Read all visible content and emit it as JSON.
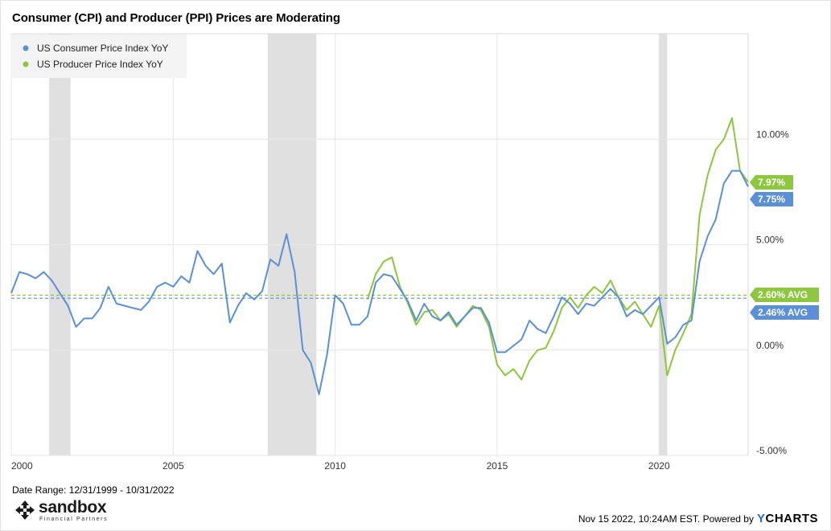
{
  "title": "Consumer (CPI) and Producer (PPI) Prices are Moderating",
  "date_range": "Date Range: 12/31/1999 - 10/31/2022",
  "footer": {
    "timestamp": "Nov 15 2022, 10:24AM EST. Powered by",
    "brand_y": "Y",
    "brand_rest": "CHARTS"
  },
  "logo": {
    "name": "sandbox",
    "sub": "Financial Partners",
    "icon": "arrows-cross-icon"
  },
  "colors": {
    "cpi": "#5b8fd6",
    "ppi": "#8dc63f",
    "recession": "#e0e0e0",
    "grid": "#e6e6e6"
  },
  "chart_data": {
    "type": "line",
    "title": "Consumer (CPI) and Producer (PPI) Prices are Moderating",
    "ylim": [
      -5,
      15
    ],
    "xlim": [
      2000.0,
      2022.75
    ],
    "x_ticks": [
      "2000",
      "2005",
      "2010",
      "2015",
      "2020"
    ],
    "y_ticks": [
      "10.00%",
      "5.00%",
      "0.00%",
      "-5.00%"
    ],
    "y_tick_values": [
      10,
      5,
      0,
      -5
    ],
    "grid": true,
    "legend_position": "top-left",
    "recessions": [
      [
        2001.17,
        2001.83
      ],
      [
        2007.92,
        2009.42
      ],
      [
        2020.0,
        2020.25
      ]
    ],
    "series": [
      {
        "name": "US Consumer Price Index YoY",
        "color": "#5b8fd6",
        "last_label": "7.75%",
        "last_value": 7.75,
        "avg_label": "2.46% AVG",
        "avg": 2.46,
        "x": [
          2000.0,
          2000.25,
          2000.5,
          2000.75,
          2001.0,
          2001.25,
          2001.5,
          2001.75,
          2002.0,
          2002.25,
          2002.5,
          2002.75,
          2003.0,
          2003.25,
          2003.5,
          2003.75,
          2004.0,
          2004.25,
          2004.5,
          2004.75,
          2005.0,
          2005.25,
          2005.5,
          2005.75,
          2006.0,
          2006.25,
          2006.5,
          2006.75,
          2007.0,
          2007.25,
          2007.5,
          2007.75,
          2008.0,
          2008.25,
          2008.5,
          2008.75,
          2009.0,
          2009.25,
          2009.5,
          2009.75,
          2010.0,
          2010.25,
          2010.5,
          2010.75,
          2011.0,
          2011.25,
          2011.5,
          2011.75,
          2012.0,
          2012.25,
          2012.5,
          2012.75,
          2013.0,
          2013.25,
          2013.5,
          2013.75,
          2014.0,
          2014.25,
          2014.5,
          2014.75,
          2015.0,
          2015.25,
          2015.5,
          2015.75,
          2016.0,
          2016.25,
          2016.5,
          2016.75,
          2017.0,
          2017.25,
          2017.5,
          2017.75,
          2018.0,
          2018.25,
          2018.5,
          2018.75,
          2019.0,
          2019.25,
          2019.5,
          2019.75,
          2020.0,
          2020.25,
          2020.5,
          2020.75,
          2021.0,
          2021.25,
          2021.5,
          2021.75,
          2022.0,
          2022.25,
          2022.5,
          2022.75
        ],
        "values": [
          2.7,
          3.7,
          3.6,
          3.4,
          3.7,
          3.3,
          2.7,
          2.1,
          1.1,
          1.5,
          1.5,
          2.0,
          3.0,
          2.2,
          2.1,
          2.0,
          1.9,
          2.3,
          3.0,
          3.2,
          3.0,
          3.5,
          3.2,
          4.7,
          4.0,
          3.6,
          4.1,
          1.3,
          2.1,
          2.7,
          2.4,
          2.8,
          4.3,
          4.0,
          5.5,
          3.7,
          0.0,
          -0.6,
          -2.1,
          -0.2,
          2.6,
          2.2,
          1.2,
          1.2,
          1.6,
          3.2,
          3.6,
          3.5,
          2.9,
          2.3,
          1.4,
          2.2,
          1.6,
          1.4,
          1.8,
          1.2,
          1.6,
          2.0,
          2.0,
          1.3,
          -0.1,
          -0.1,
          0.2,
          0.5,
          1.4,
          1.0,
          0.8,
          1.6,
          2.5,
          2.2,
          1.7,
          2.2,
          2.1,
          2.5,
          2.9,
          2.5,
          1.6,
          1.9,
          1.7,
          2.1,
          2.5,
          0.3,
          0.6,
          1.2,
          1.4,
          4.2,
          5.4,
          6.2,
          7.9,
          8.5,
          8.5,
          7.75
        ]
      },
      {
        "name": "US Producer Price Index YoY",
        "color": "#8dc63f",
        "last_label": "7.97%",
        "last_value": 7.97,
        "avg_label": "2.60% AVG",
        "avg": 2.6,
        "x": [
          2011.0,
          2011.25,
          2011.5,
          2011.75,
          2012.0,
          2012.25,
          2012.5,
          2012.75,
          2013.0,
          2013.25,
          2013.5,
          2013.75,
          2014.0,
          2014.25,
          2014.5,
          2014.75,
          2015.0,
          2015.25,
          2015.5,
          2015.75,
          2016.0,
          2016.25,
          2016.5,
          2016.75,
          2017.0,
          2017.25,
          2017.5,
          2017.75,
          2018.0,
          2018.25,
          2018.5,
          2018.75,
          2019.0,
          2019.25,
          2019.5,
          2019.75,
          2020.0,
          2020.25,
          2020.5,
          2020.75,
          2021.0,
          2021.25,
          2021.5,
          2021.75,
          2022.0,
          2022.25,
          2022.5,
          2022.75
        ],
        "values": [
          2.4,
          3.6,
          4.2,
          4.4,
          3.0,
          2.2,
          1.2,
          1.8,
          1.9,
          1.4,
          1.7,
          1.1,
          1.6,
          2.1,
          1.9,
          1.1,
          -0.7,
          -1.2,
          -0.9,
          -1.4,
          -0.5,
          0.0,
          0.1,
          0.9,
          2.0,
          2.5,
          2.0,
          2.6,
          3.0,
          2.7,
          3.3,
          2.5,
          1.9,
          2.3,
          1.7,
          1.1,
          2.1,
          -1.2,
          0.0,
          0.8,
          1.7,
          6.4,
          8.3,
          9.5,
          10.0,
          11.0,
          8.5,
          7.97
        ]
      }
    ]
  }
}
